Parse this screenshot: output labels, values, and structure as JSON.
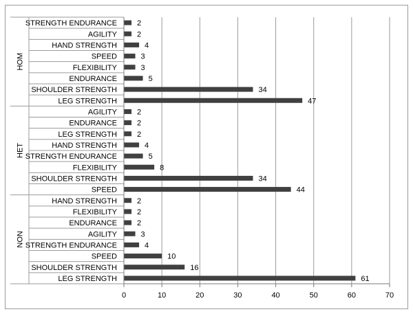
{
  "chart_data": {
    "type": "bar",
    "orientation": "horizontal",
    "title": "",
    "xlabel": "",
    "ylabel": "",
    "xlim": [
      0,
      70
    ],
    "x_ticks": [
      "0",
      "10",
      "20",
      "30",
      "40",
      "50",
      "60",
      "70"
    ],
    "grid": true,
    "bar_color": "#404040",
    "show_value_labels": true,
    "groups": [
      {
        "name": "HOM",
        "categories": [
          "STRENGTH ENDURANCE",
          "AGILITY",
          "HAND STRENGTH",
          "SPEED",
          "FLEXIBILITY",
          "ENDURANCE",
          "SHOULDER STRENGTH",
          "LEG STRENGTH"
        ],
        "values": [
          2,
          2,
          4,
          3,
          3,
          5,
          34,
          47
        ]
      },
      {
        "name": "HET",
        "categories": [
          "AGILITY",
          "ENDURANCE",
          "LEG STRENGTH",
          "HAND STRENGTH",
          "STRENGTH ENDURANCE",
          "FLEXIBILITY",
          "SHOULDER STRENGTH",
          "SPEED"
        ],
        "values": [
          2,
          2,
          2,
          4,
          5,
          8,
          34,
          44
        ]
      },
      {
        "name": "NON",
        "categories": [
          "HAND STRENGTH",
          "FLEXIBILITY",
          "ENDURANCE",
          "AGILITY",
          "STRENGTH ENDURANCE",
          "SPEED",
          "SHOULDER STRENGTH",
          "LEG STRENGTH"
        ],
        "values": [
          2,
          2,
          2,
          3,
          4,
          10,
          16,
          61
        ]
      }
    ]
  }
}
